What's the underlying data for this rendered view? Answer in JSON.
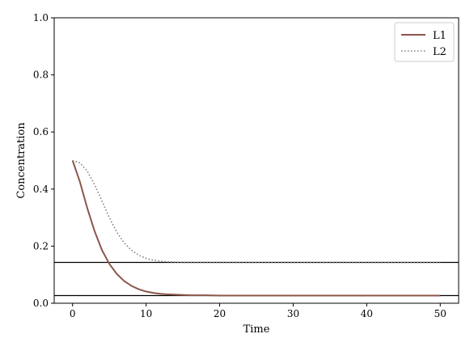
{
  "chart_data": {
    "type": "line",
    "title": "",
    "xlabel": "Time",
    "ylabel": "Concentration",
    "xlim": [
      -2.5,
      52.5
    ],
    "ylim": [
      0.0,
      1.0
    ],
    "xticks": [
      0,
      10,
      20,
      30,
      40,
      50
    ],
    "yticks": [
      0.0,
      0.2,
      0.4,
      0.6,
      0.8,
      1.0
    ],
    "xtick_labels": [
      "0",
      "10",
      "20",
      "30",
      "40",
      "50"
    ],
    "ytick_labels": [
      "0.0",
      "0.2",
      "0.4",
      "0.6",
      "0.8",
      "1.0"
    ],
    "grid": false,
    "legend_position": "top-right",
    "series": [
      {
        "name": "L1",
        "style": "solid",
        "color": "#8c564b",
        "x": [
          0,
          1,
          2,
          3,
          4,
          5,
          6,
          7,
          8,
          9,
          10,
          11,
          12,
          13,
          14,
          15,
          16,
          18,
          20,
          25,
          30,
          35,
          40,
          45,
          50
        ],
        "y": [
          0.5,
          0.425,
          0.333,
          0.252,
          0.186,
          0.138,
          0.103,
          0.078,
          0.061,
          0.049,
          0.041,
          0.036,
          0.033,
          0.031,
          0.03,
          0.029,
          0.028,
          0.028,
          0.027,
          0.027,
          0.027,
          0.027,
          0.027,
          0.027,
          0.027
        ]
      },
      {
        "name": "L2",
        "style": "dotted",
        "color": "#7f7f7f",
        "x": [
          0,
          1,
          2,
          3,
          4,
          5,
          6,
          7,
          8,
          9,
          10,
          11,
          12,
          13,
          14,
          15,
          16,
          18,
          20,
          25,
          30,
          35,
          40,
          45,
          50
        ],
        "y": [
          0.5,
          0.492,
          0.463,
          0.415,
          0.358,
          0.3,
          0.25,
          0.212,
          0.186,
          0.168,
          0.157,
          0.151,
          0.147,
          0.145,
          0.144,
          0.143,
          0.143,
          0.143,
          0.143,
          0.143,
          0.143,
          0.143,
          0.143,
          0.143,
          0.143
        ]
      }
    ],
    "hlines": [
      {
        "y": 0.143,
        "color": "#000000"
      },
      {
        "y": 0.027,
        "color": "#000000"
      }
    ]
  }
}
